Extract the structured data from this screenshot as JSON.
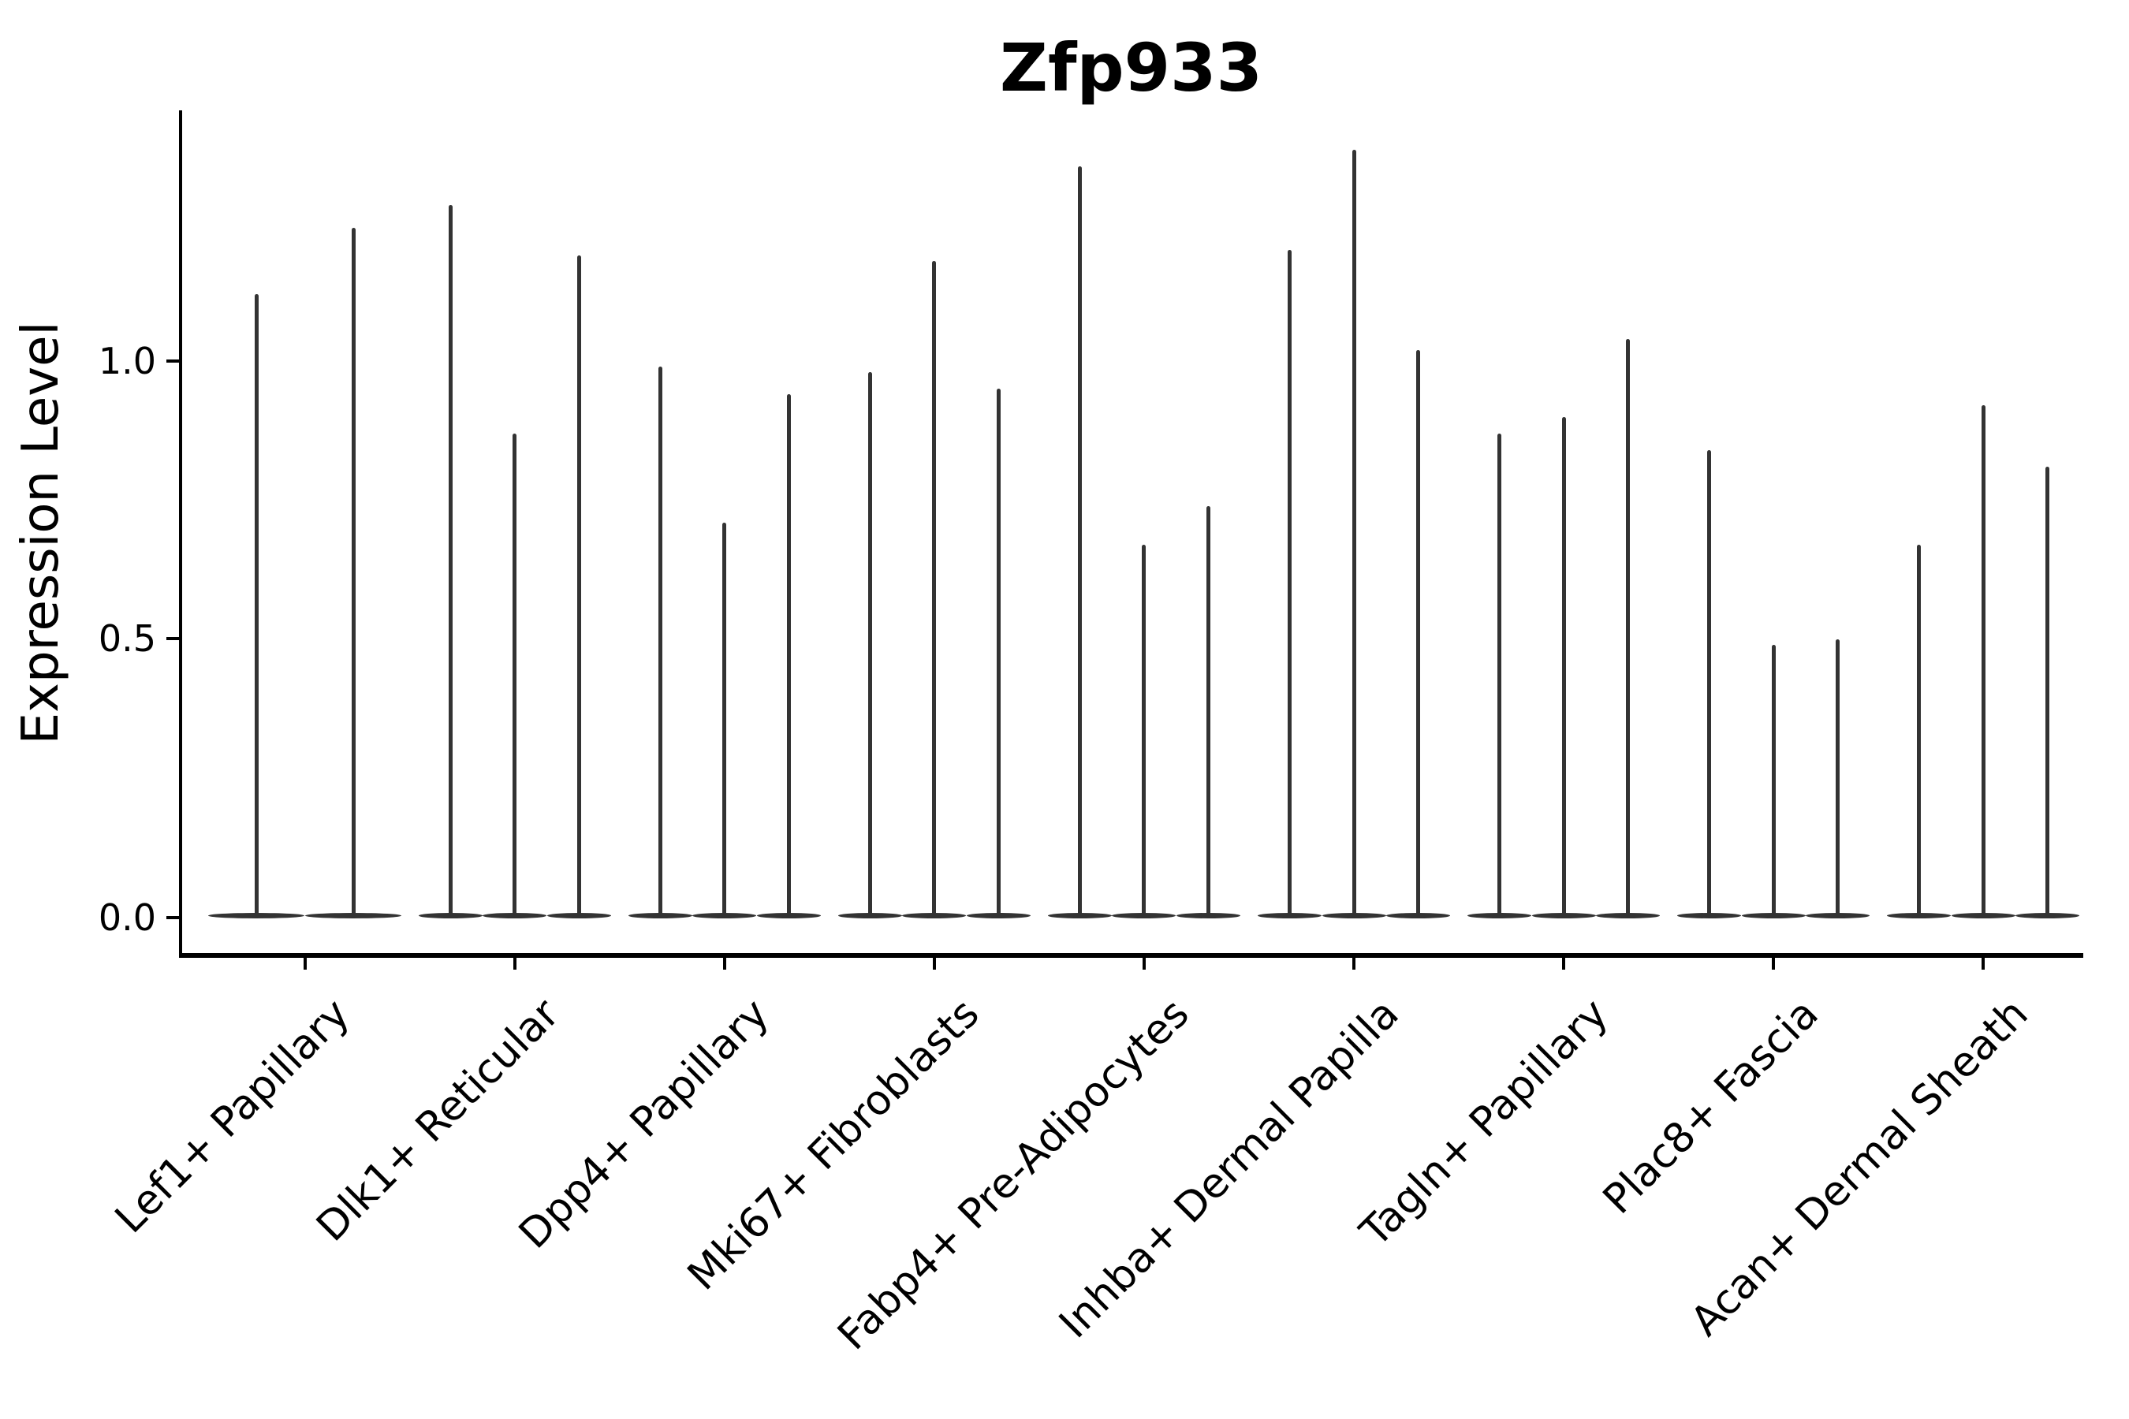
{
  "title": "Zfp933",
  "y_axis": {
    "label": "Expression Level",
    "ticks": [
      {
        "label": "1.0",
        "value": 1.0
      },
      {
        "label": "0.5",
        "value": 0.5
      },
      {
        "label": "0.0",
        "value": 0.0
      }
    ]
  },
  "x_axis": {
    "categories": [
      "Lef1+ Papillary",
      "Dlk1+ Reticular",
      "Dpp4+ Papillary",
      "Mki67+ Fibroblasts",
      "Fabp4+ Pre-Adipocytes",
      "Inhba+ Dermal Papilla",
      "Tagln+ Papillary",
      "Plac8+ Fascia",
      "Acan+ Dermal Sheath"
    ]
  },
  "colors": {
    "violin": "#333333",
    "axis": "#000000",
    "text": "#000000",
    "background": "#ffffff"
  },
  "chart_data": {
    "type": "violin",
    "title": "Zfp933",
    "xlabel": "",
    "ylabel": "Expression Level",
    "legend": "none",
    "grid": false,
    "ylim": [
      -0.07,
      1.45
    ],
    "yticks": [
      0.0,
      0.5,
      1.0
    ],
    "categories": [
      "Lef1+ Papillary",
      "Dlk1+ Reticular",
      "Dpp4+ Papillary",
      "Mki67+ Fibroblasts",
      "Fabp4+ Pre-Adipocytes",
      "Inhba+ Dermal Papilla",
      "Tagln+ Papillary",
      "Plac8+ Fascia",
      "Acan+ Dermal Sheath"
    ],
    "series": [
      {
        "category": "Lef1+ Papillary",
        "violin_max_values": [
          1.12,
          1.24
        ]
      },
      {
        "category": "Dlk1+ Reticular",
        "violin_max_values": [
          1.28,
          0.87,
          1.19
        ]
      },
      {
        "category": "Dpp4+ Papillary",
        "violin_max_values": [
          0.99,
          0.71,
          0.94
        ]
      },
      {
        "category": "Mki67+ Fibroblasts",
        "violin_max_values": [
          0.98,
          1.18,
          0.95
        ]
      },
      {
        "category": "Fabp4+ Pre-Adipocytes",
        "violin_max_values": [
          1.35,
          0.67,
          0.74
        ]
      },
      {
        "category": "Inhba+ Dermal Papilla",
        "violin_max_values": [
          1.2,
          1.38,
          1.02
        ]
      },
      {
        "category": "Tagln+ Papillary",
        "violin_max_values": [
          0.87,
          0.9,
          1.04
        ]
      },
      {
        "category": "Plac8+ Fascia",
        "violin_max_values": [
          0.84,
          0.49,
          0.5
        ]
      },
      {
        "category": "Acan+ Dermal Sheath",
        "violin_max_values": [
          0.67,
          0.92,
          0.81
        ]
      }
    ],
    "description": "Each violin is mass-concentrated at expression 0 (flat wide base) with a hair-thin tail rising to its maximum expression value."
  }
}
